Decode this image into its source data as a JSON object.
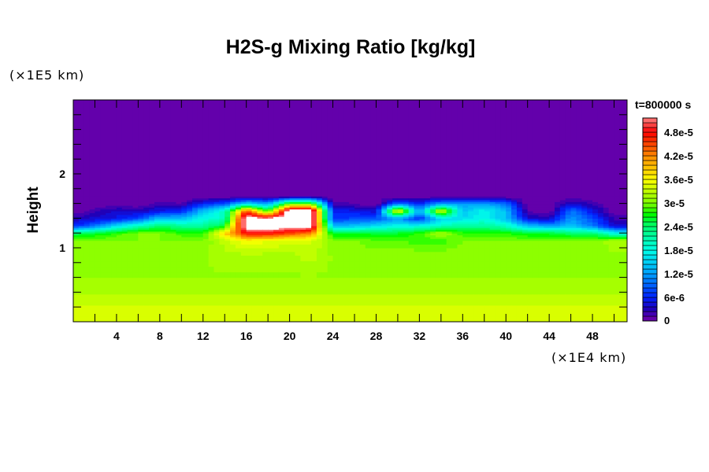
{
  "chart_data": {
    "type": "heatmap",
    "title": "H2S-g Mixing Ratio [kg/kg]",
    "ylabel": "Height",
    "y_unit": "(×1E5 km)",
    "x_unit": "(×1E4 km)",
    "time_label": "t=800000 s",
    "xlim": [
      0,
      51.2
    ],
    "ylim": [
      0,
      3.0
    ],
    "x_ticks": [
      4,
      8,
      12,
      16,
      20,
      24,
      28,
      32,
      36,
      40,
      44,
      48
    ],
    "x_tick_labels": [
      "4",
      "8",
      "12",
      "16",
      "20",
      "24",
      "28",
      "32",
      "36",
      "40",
      "44",
      "48"
    ],
    "y_ticks": [
      1,
      2
    ],
    "y_tick_labels": [
      "1",
      "2"
    ],
    "value_scale": 1e-05,
    "grid_x": [
      0,
      2,
      4,
      6,
      8,
      10,
      12,
      14,
      16,
      18,
      20,
      22,
      24,
      26,
      28,
      30,
      32,
      34,
      36,
      38,
      40,
      42,
      44,
      46,
      48,
      50,
      52
    ],
    "grid_y": [
      0,
      0.3,
      0.6,
      0.9,
      1.1,
      1.2,
      1.3,
      1.4,
      1.5,
      1.6,
      1.7,
      3.0
    ],
    "values_by_column": [
      [
        3.5,
        3.3,
        3.1,
        3.1,
        3.0,
        2.4,
        0.6,
        0.3,
        0,
        0,
        0,
        0
      ],
      [
        3.5,
        3.3,
        3.1,
        3.1,
        3.0,
        2.6,
        1.0,
        0.4,
        0.2,
        0,
        0,
        0
      ],
      [
        3.5,
        3.3,
        3.1,
        3.1,
        3.0,
        2.8,
        1.6,
        0.5,
        0.4,
        0,
        0,
        0
      ],
      [
        3.5,
        3.3,
        3.1,
        3.1,
        3.0,
        3.0,
        2.0,
        0.8,
        0.3,
        0,
        0,
        0
      ],
      [
        3.5,
        3.3,
        3.1,
        3.1,
        3.0,
        3.0,
        2.4,
        1.4,
        0.5,
        0.2,
        0,
        0
      ],
      [
        3.5,
        3.3,
        3.1,
        3.1,
        3.0,
        2.8,
        2.2,
        1.4,
        0.6,
        0.1,
        0,
        0
      ],
      [
        3.5,
        3.3,
        3.1,
        3.1,
        3.0,
        2.8,
        2.2,
        1.8,
        1.4,
        0.6,
        0,
        0
      ],
      [
        3.5,
        3.3,
        3.1,
        3.2,
        3.3,
        3.8,
        2.6,
        2.0,
        2.0,
        0.8,
        0,
        0
      ],
      [
        3.5,
        3.3,
        3.1,
        3.2,
        3.6,
        4.8,
        5.5,
        5.5,
        4.6,
        1.6,
        0,
        0
      ],
      [
        3.5,
        3.3,
        3.1,
        3.2,
        3.5,
        4.8,
        5.6,
        5.3,
        2.8,
        1.2,
        0,
        0
      ],
      [
        3.5,
        3.3,
        3.1,
        3.2,
        3.4,
        4.5,
        5.5,
        5.6,
        5.6,
        3.0,
        0,
        0
      ],
      [
        3.5,
        3.3,
        3.1,
        3.3,
        3.4,
        4.2,
        5.5,
        5.6,
        5.6,
        3.0,
        0,
        0
      ],
      [
        3.5,
        3.3,
        3.1,
        3.1,
        3.0,
        2.6,
        1.4,
        0.6,
        0.6,
        0.2,
        0,
        0
      ],
      [
        3.5,
        3.3,
        3.1,
        3.1,
        3.0,
        2.6,
        1.4,
        0.8,
        0.5,
        0.1,
        0,
        0
      ],
      [
        3.5,
        3.3,
        3.1,
        3.1,
        2.9,
        2.6,
        1.6,
        0.8,
        0.4,
        0,
        0,
        0
      ],
      [
        3.5,
        3.3,
        3.1,
        3.1,
        2.9,
        2.6,
        1.8,
        1.2,
        3.8,
        1.0,
        0,
        0
      ],
      [
        3.5,
        3.3,
        3.1,
        3.1,
        2.8,
        2.8,
        1.8,
        0.6,
        1.2,
        0.6,
        0,
        0
      ],
      [
        3.5,
        3.3,
        3.1,
        3.1,
        2.8,
        3.2,
        2.0,
        1.6,
        3.6,
        1.2,
        0,
        0
      ],
      [
        3.5,
        3.3,
        3.1,
        3.1,
        3.0,
        2.8,
        2.2,
        1.6,
        1.4,
        1.2,
        0,
        0
      ],
      [
        3.5,
        3.3,
        3.1,
        3.1,
        3.0,
        2.8,
        2.2,
        1.8,
        1.8,
        1.2,
        0,
        0
      ],
      [
        3.5,
        3.3,
        3.1,
        3.1,
        3.0,
        2.8,
        2.0,
        1.4,
        1.4,
        1.0,
        0,
        0
      ],
      [
        3.5,
        3.3,
        3.1,
        3.1,
        3.0,
        2.6,
        1.4,
        0.4,
        0.1,
        0,
        0,
        0
      ],
      [
        3.5,
        3.3,
        3.1,
        3.1,
        3.0,
        2.6,
        1.2,
        0.3,
        0,
        0,
        0,
        0
      ],
      [
        3.5,
        3.3,
        3.1,
        3.1,
        3.0,
        2.4,
        1.4,
        1.2,
        1.0,
        0.4,
        0,
        0
      ],
      [
        3.5,
        3.3,
        3.1,
        3.1,
        3.0,
        2.4,
        1.0,
        0.8,
        0.5,
        0.2,
        0,
        0
      ],
      [
        3.5,
        3.3,
        3.1,
        3.1,
        3.2,
        1.8,
        0.4,
        0.2,
        0,
        0,
        0,
        0
      ],
      [
        3.5,
        3.3,
        3.1,
        3.1,
        3.2,
        1.8,
        0.4,
        0.2,
        0,
        0,
        0,
        0
      ]
    ],
    "colorbar": {
      "range": [
        0,
        5.2e-05
      ],
      "bin_width": 1.2e-06,
      "tick_values": [
        0,
        6e-06,
        1.2e-05,
        1.8e-05,
        2.4e-05,
        3e-05,
        3.6e-05,
        4.2e-05,
        4.8e-05
      ],
      "tick_labels": [
        "0",
        "6e-6",
        "1.2e-5",
        "1.8e-5",
        "2.4e-5",
        "3e-5",
        "3.6e-5",
        "4.2e-5",
        "4.8e-5"
      ],
      "color_stops": [
        [
          0,
          "#7400a8"
        ],
        [
          0.3,
          "#2000b8"
        ],
        [
          0.6,
          "#0020ff"
        ],
        [
          1.2,
          "#00a0ff"
        ],
        [
          1.8,
          "#00ffe8"
        ],
        [
          2.4,
          "#00ff70"
        ],
        [
          2.7,
          "#00ff00"
        ],
        [
          3.0,
          "#80ff00"
        ],
        [
          3.3,
          "#c0ff00"
        ],
        [
          3.6,
          "#ffff00"
        ],
        [
          4.2,
          "#ff8800"
        ],
        [
          4.8,
          "#ff0000"
        ],
        [
          5.2,
          "#ff9090"
        ]
      ],
      "over_color": "#ffffff"
    }
  }
}
